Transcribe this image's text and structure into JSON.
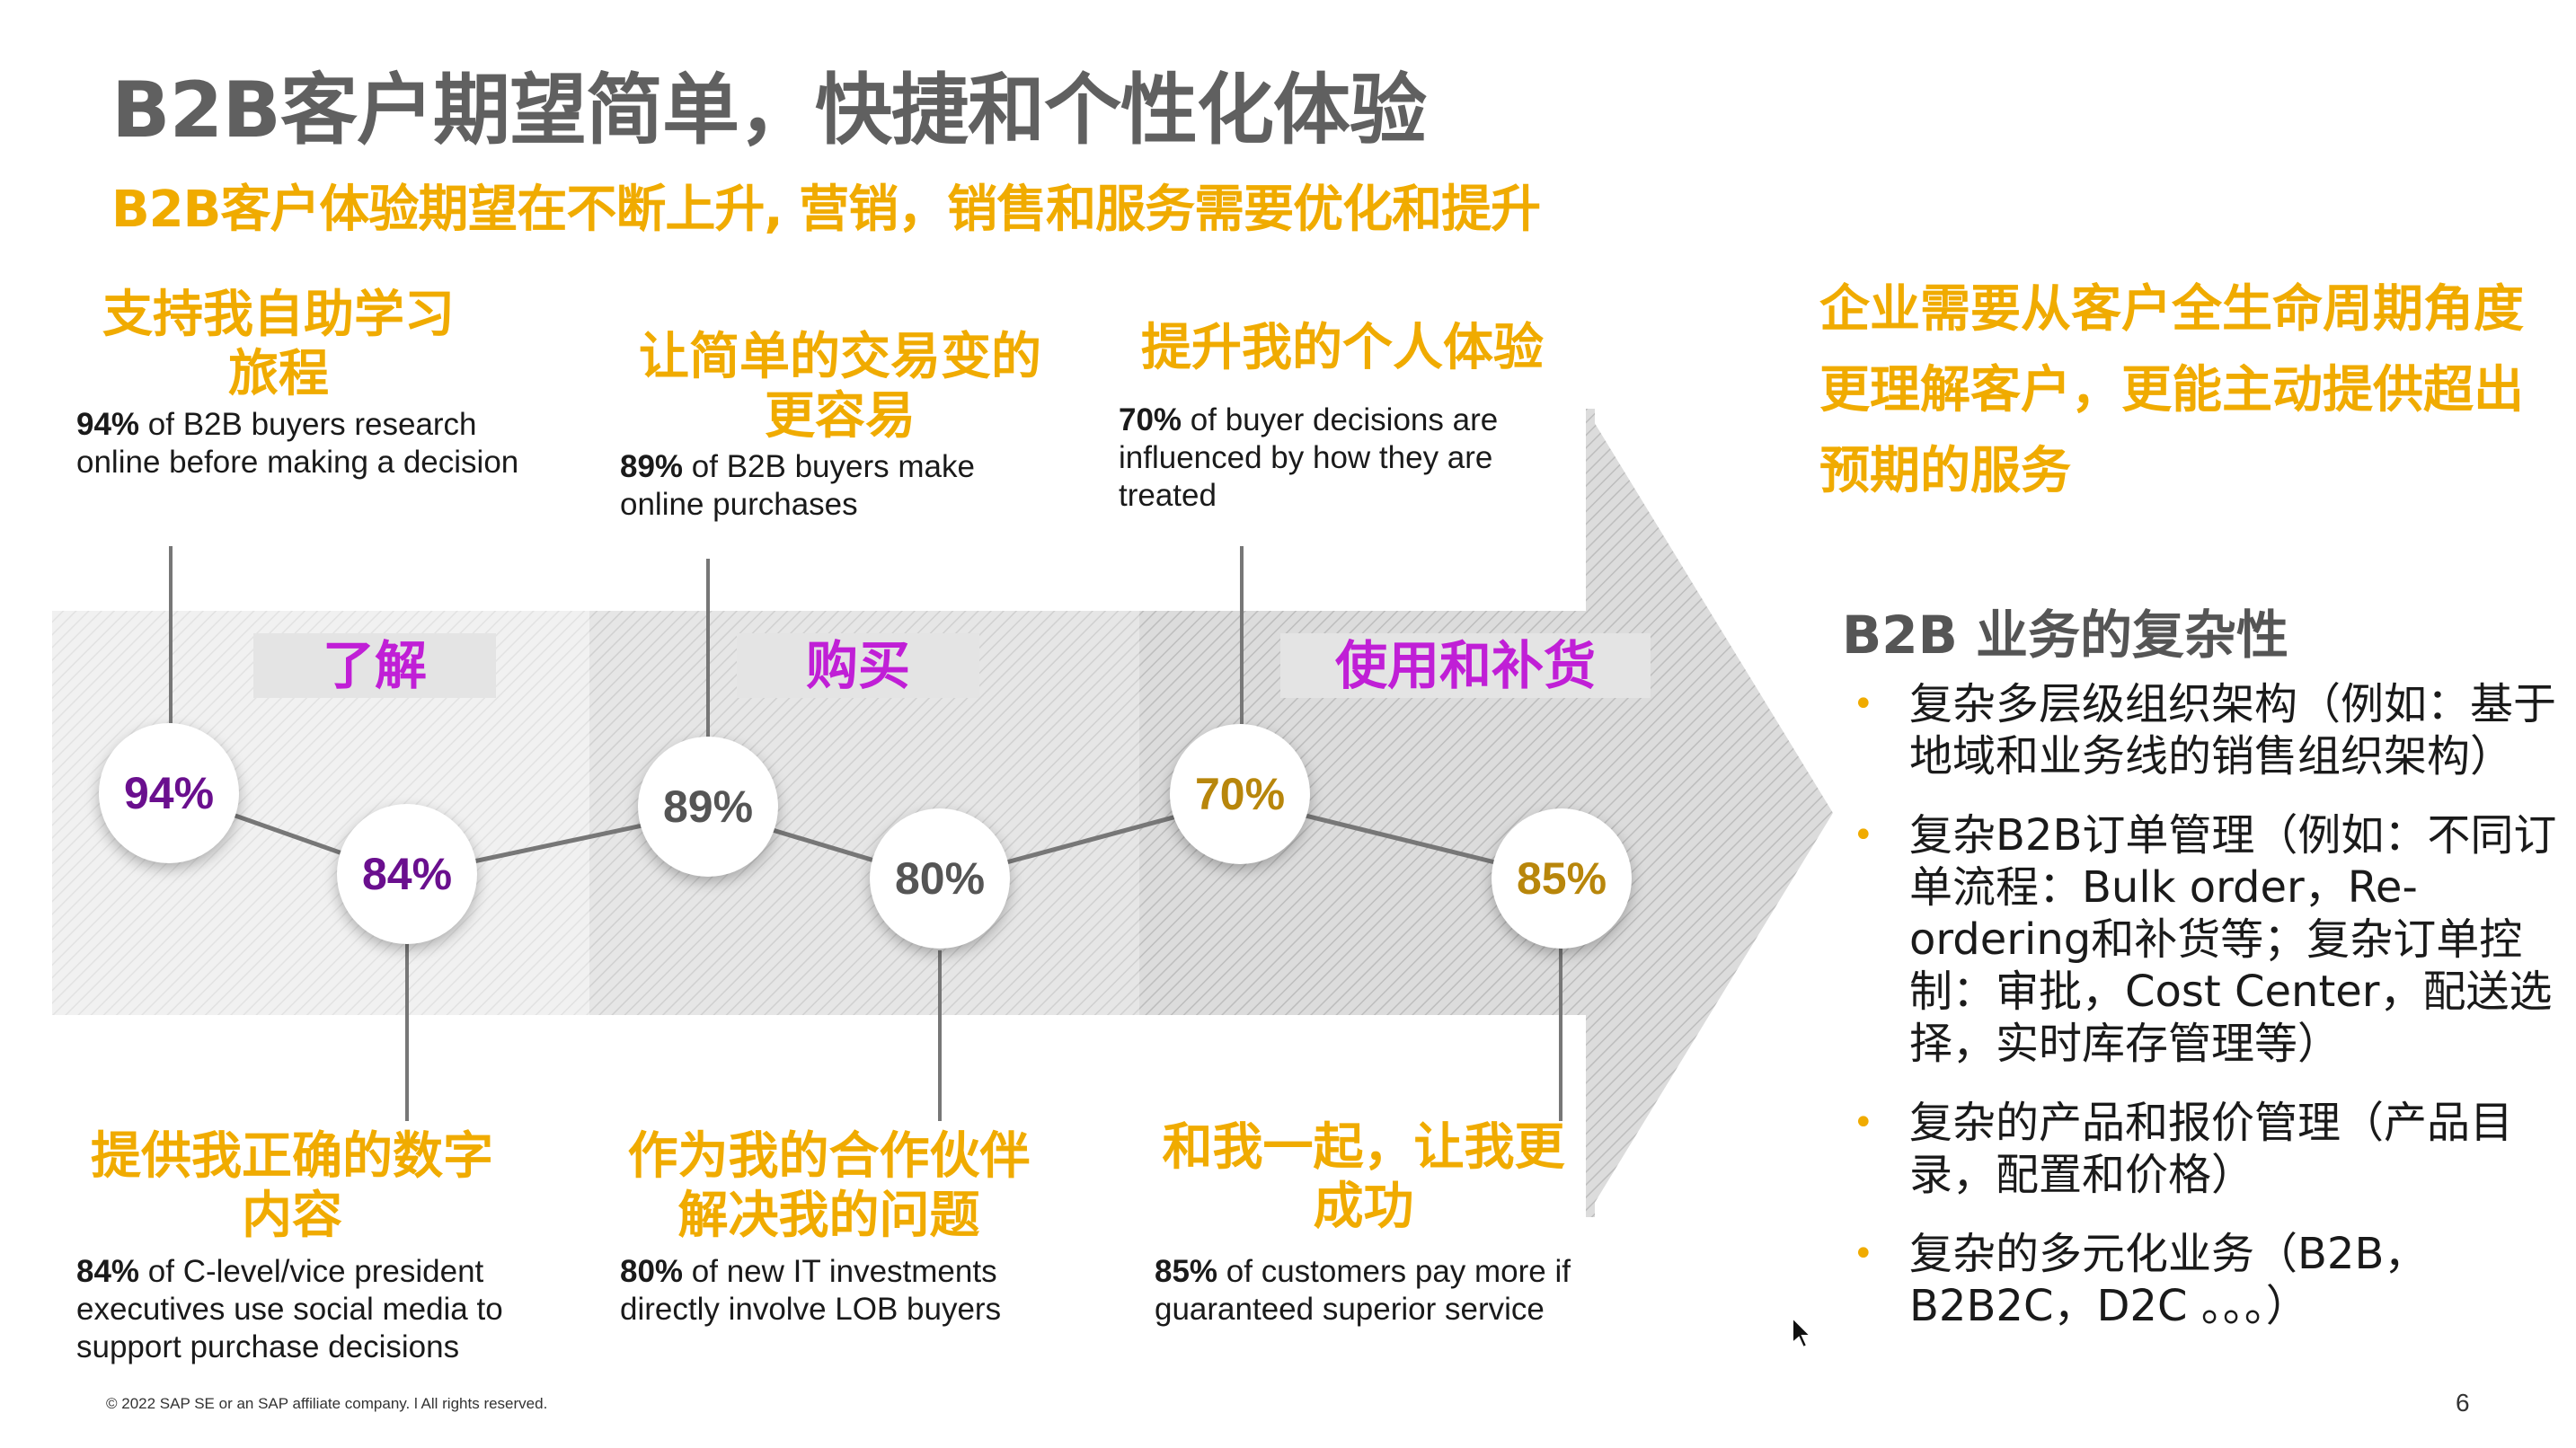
{
  "title": "B2B客户期望简单，快捷和个性化体验",
  "subtitle": "B2B客户体验期望在不断上升, 营销，销售和服务需要优化和提升",
  "top_items": [
    {
      "heading_l1": "支持我自助学习",
      "heading_l2": "旅程",
      "stat_bold": "94%",
      "stat_text": " of B2B buyers research online before making a decision"
    },
    {
      "heading_l1": "让简单的交易变的",
      "heading_l2": "更容易",
      "stat_bold": "89%",
      "stat_text": " of B2B buyers make online purchases"
    },
    {
      "heading_l1": "提升我的个人体验",
      "heading_l2": "",
      "stat_bold": "70%",
      "stat_text": " of buyer decisions are influenced by how they are treated"
    }
  ],
  "bottom_items": [
    {
      "heading_l1": "提供我正确的数字",
      "heading_l2": "内容",
      "stat_bold": "84%",
      "stat_text": " of C-level/vice president executives use social media to support purchase decisions"
    },
    {
      "heading_l1": "作为我的合作伙伴",
      "heading_l2": "解决我的问题",
      "stat_bold": "80%",
      "stat_text": " of new IT investments directly involve LOB buyers"
    },
    {
      "heading_l1": "和我一起，让我更",
      "heading_l2": "成功",
      "stat_bold": "85%",
      "stat_text": " of customers pay more if guaranteed superior service"
    }
  ],
  "stages": [
    "了解",
    "购买",
    "使用和补货"
  ],
  "circles": [
    {
      "label": "94%",
      "color": "#6A0F8E"
    },
    {
      "label": "84%",
      "color": "#6A0F8E"
    },
    {
      "label": "89%",
      "color": "#555555"
    },
    {
      "label": "80%",
      "color": "#555555"
    },
    {
      "label": "70%",
      "color": "#B8860B"
    },
    {
      "label": "85%",
      "color": "#B8860B"
    }
  ],
  "right_heading": "企业需要从客户全生命周期角度更理解客户，更能主动提供超出预期的服务",
  "complexity_title": "B2B 业务的复杂性",
  "bullets": [
    "复杂多层级组织架构（例如：基于地域和业务线的销售组织架构）",
    "复杂B2B订单管理（例如：不同订单流程：Bulk order，Re-ordering和补货等；复杂订单控制：审批，Cost Center，配送选择，实时库存管理等）",
    "复杂的产品和报价管理（产品目录，配置和价格）",
    "复杂的多元化业务（B2B，B2B2C，D2C 。。。）"
  ],
  "bullet_symbol": "•",
  "footer": "© 2022 SAP SE or an SAP affiliate company.  l  All rights reserved.",
  "page_number": "6"
}
